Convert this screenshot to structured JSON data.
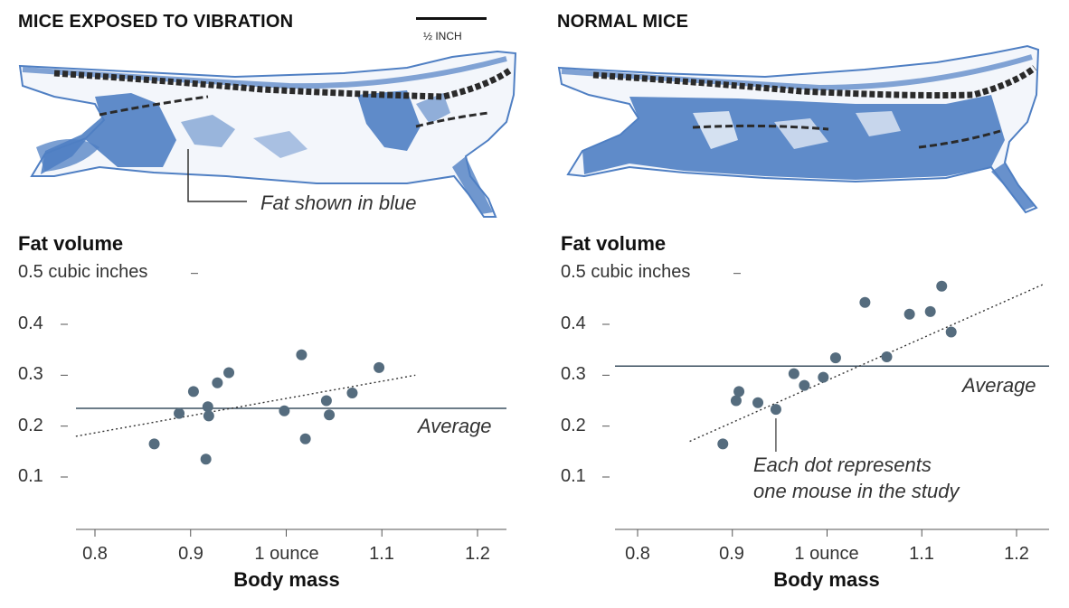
{
  "chart_data": [
    {
      "type": "scatter",
      "title": "MICE EXPOSED TO VIBRATION",
      "ylabel": "Fat volume",
      "ylabel_unit": "0.5 cubic inches",
      "xlabel": "Body mass",
      "y_ticks": [
        "0.4",
        "0.3",
        "0.2",
        "0.1"
      ],
      "x_ticks": [
        "0.8",
        "0.9",
        "1 ounce",
        "1.1",
        "1.2"
      ],
      "xlim": [
        0.78,
        1.23
      ],
      "ylim": [
        0.05,
        0.55
      ],
      "average": 0.235,
      "average_label": "Average",
      "trend_line": {
        "x": [
          0.78,
          1.135
        ],
        "y": [
          0.18,
          0.3
        ]
      },
      "points": [
        {
          "x": 0.862,
          "y": 0.165
        },
        {
          "x": 0.888,
          "y": 0.225
        },
        {
          "x": 0.903,
          "y": 0.268
        },
        {
          "x": 0.916,
          "y": 0.135
        },
        {
          "x": 0.918,
          "y": 0.238
        },
        {
          "x": 0.919,
          "y": 0.22
        },
        {
          "x": 0.928,
          "y": 0.285
        },
        {
          "x": 0.94,
          "y": 0.305
        },
        {
          "x": 0.998,
          "y": 0.23
        },
        {
          "x": 1.016,
          "y": 0.34
        },
        {
          "x": 1.02,
          "y": 0.175
        },
        {
          "x": 1.042,
          "y": 0.25
        },
        {
          "x": 1.045,
          "y": 0.222
        },
        {
          "x": 1.069,
          "y": 0.265
        },
        {
          "x": 1.097,
          "y": 0.315
        }
      ]
    },
    {
      "type": "scatter",
      "title": "NORMAL MICE",
      "ylabel": "Fat volume",
      "ylabel_unit": "0.5 cubic inches",
      "xlabel": "Body mass",
      "y_ticks": [
        "0.4",
        "0.3",
        "0.2",
        "0.1"
      ],
      "x_ticks": [
        "0.8",
        "0.9",
        "1 ounce",
        "1.1",
        "1.2"
      ],
      "xlim": [
        0.78,
        1.23
      ],
      "ylim": [
        0.05,
        0.55
      ],
      "average": 0.318,
      "average_label": "Average",
      "trend_line": {
        "x": [
          0.855,
          1.23
        ],
        "y": [
          0.17,
          0.48
        ]
      },
      "points": [
        {
          "x": 0.89,
          "y": 0.165
        },
        {
          "x": 0.904,
          "y": 0.25
        },
        {
          "x": 0.907,
          "y": 0.268
        },
        {
          "x": 0.927,
          "y": 0.246
        },
        {
          "x": 0.946,
          "y": 0.233
        },
        {
          "x": 0.965,
          "y": 0.303
        },
        {
          "x": 0.976,
          "y": 0.28
        },
        {
          "x": 0.996,
          "y": 0.296
        },
        {
          "x": 1.009,
          "y": 0.334
        },
        {
          "x": 1.04,
          "y": 0.443
        },
        {
          "x": 1.063,
          "y": 0.336
        },
        {
          "x": 1.087,
          "y": 0.42
        },
        {
          "x": 1.109,
          "y": 0.425
        },
        {
          "x": 1.121,
          "y": 0.475
        },
        {
          "x": 1.131,
          "y": 0.385
        }
      ]
    }
  ],
  "scale_bar_label": "½ INCH",
  "callout_fat": "Fat shown in blue",
  "callout_dot_line1": "Each dot represents",
  "callout_dot_line2": "one mouse in the study",
  "colors": {
    "dot": "#556c7e",
    "line": "#3c5060",
    "fat_blue": "#4f7fc3",
    "bone": "#2a2a2a",
    "text": "#333333"
  }
}
